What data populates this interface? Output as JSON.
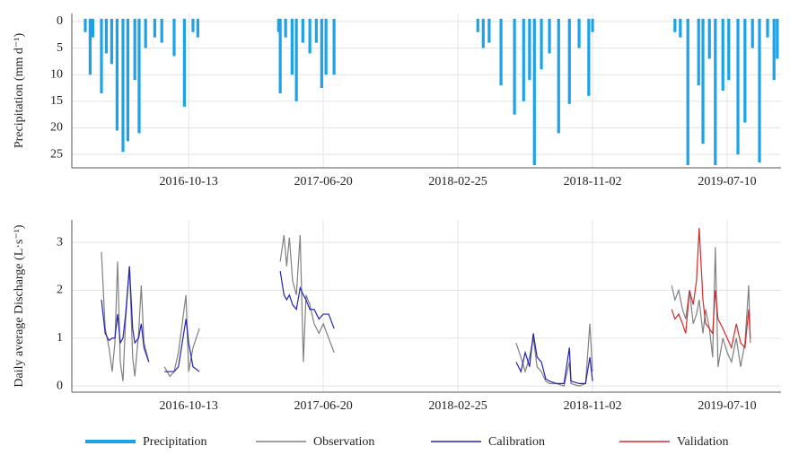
{
  "chart_data": [
    {
      "type": "bar",
      "ylabel": "Precipitation (mm d⁻¹)",
      "xlim": [
        "2016-03-10",
        "2019-10-18"
      ],
      "xticks": [
        "2016-10-13",
        "2017-06-20",
        "2018-02-25",
        "2018-11-02",
        "2019-07-10"
      ],
      "ylim": [
        -1.5,
        27.5
      ],
      "yticks": [
        0,
        5,
        10,
        15,
        20,
        25
      ],
      "y_inverted": true,
      "grid": true,
      "series": [
        {
          "name": "Precipitation",
          "color": "#1aa3e8",
          "x": [
            "2016-04-04",
            "2016-04-13",
            "2016-04-18",
            "2016-05-04",
            "2016-05-13",
            "2016-05-23",
            "2016-06-02",
            "2016-06-13",
            "2016-06-22",
            "2016-07-05",
            "2016-07-13",
            "2016-07-25",
            "2016-08-11",
            "2016-08-24",
            "2016-09-16",
            "2016-10-05",
            "2016-10-21",
            "2016-10-30",
            "2017-03-29",
            "2017-04-01",
            "2017-04-11",
            "2017-04-23",
            "2017-05-01",
            "2017-05-13",
            "2017-05-26",
            "2017-06-07",
            "2017-06-17",
            "2017-06-25",
            "2017-07-10",
            "2018-04-03",
            "2018-04-13",
            "2018-04-24",
            "2018-05-16",
            "2018-06-10",
            "2018-06-27",
            "2018-07-08",
            "2018-07-17",
            "2018-07-30",
            "2018-08-14",
            "2018-08-31",
            "2018-09-20",
            "2018-10-08",
            "2018-10-26",
            "2018-11-02",
            "2019-04-04",
            "2019-04-14",
            "2019-04-28",
            "2019-05-18",
            "2019-05-26",
            "2019-06-07",
            "2019-06-18",
            "2019-07-02",
            "2019-07-13",
            "2019-07-30",
            "2019-08-12",
            "2019-08-26",
            "2019-09-08",
            "2019-09-23",
            "2019-10-05",
            "2019-10-11"
          ],
          "values": [
            2,
            10,
            3,
            13.5,
            6,
            8,
            20.5,
            24.5,
            22.5,
            11,
            21,
            5,
            3,
            4,
            6.5,
            16,
            2,
            3,
            2,
            13.5,
            3,
            10,
            15,
            4,
            6,
            4,
            12.5,
            10,
            10,
            2,
            5,
            4,
            12,
            17.5,
            15,
            11,
            27,
            9,
            6,
            21,
            15.5,
            5,
            14,
            2,
            2,
            3,
            27,
            12,
            23,
            7,
            27,
            13,
            11,
            25,
            19,
            5,
            26.5,
            3,
            11,
            7
          ]
        }
      ]
    },
    {
      "type": "line",
      "ylabel": "Daily average Discharge (L·s⁻¹)",
      "xlim": [
        "2016-03-10",
        "2019-10-18"
      ],
      "xticks": [
        "2016-10-13",
        "2017-06-20",
        "2018-02-25",
        "2018-11-02",
        "2019-07-10"
      ],
      "ylim": [
        -0.13,
        3.47
      ],
      "yticks": [
        0,
        1,
        2,
        3
      ],
      "grid": true,
      "series": [
        {
          "name": "Observation",
          "color": "#808080",
          "x": [
            "2016-05-04",
            "2016-05-11",
            "2016-05-18",
            "2016-05-24",
            "2016-05-29",
            "2016-06-03",
            "2016-06-08",
            "2016-06-13",
            "2016-06-18",
            "2016-06-25",
            "2016-07-01",
            "2016-07-05",
            "2016-07-12",
            "2016-07-17",
            "2016-07-22",
            "2016-07-31",
            "2016-08-10",
            "2016-08-29",
            "2016-09-08",
            "2016-09-16",
            "2016-09-24",
            "2016-10-08",
            "2016-10-13",
            "2016-10-21",
            "2016-11-02",
            "2017-01-01",
            "2017-04-01",
            "2017-04-08",
            "2017-04-13",
            "2017-04-18",
            "2017-04-24",
            "2017-05-01",
            "2017-05-08",
            "2017-05-14",
            "2017-05-19",
            "2017-05-26",
            "2017-06-03",
            "2017-06-12",
            "2017-06-20",
            "2017-06-30",
            "2017-07-10",
            "2018-01-01",
            "2018-06-13",
            "2018-06-22",
            "2018-06-30",
            "2018-07-08",
            "2018-07-15",
            "2018-07-22",
            "2018-07-30",
            "2018-08-07",
            "2018-08-14",
            "2018-08-27",
            "2018-09-10",
            "2018-09-20",
            "2018-09-23",
            "2018-10-08",
            "2018-10-20",
            "2018-10-28",
            "2018-11-02",
            "2019-01-01",
            "2019-03-29",
            "2019-04-04",
            "2019-04-11",
            "2019-04-18",
            "2019-04-24",
            "2019-05-01",
            "2019-05-08",
            "2019-05-14",
            "2019-05-19",
            "2019-05-26",
            "2019-05-31",
            "2019-06-07",
            "2019-06-13",
            "2019-06-18",
            "2019-06-23",
            "2019-07-02",
            "2019-07-10",
            "2019-07-18",
            "2019-07-27",
            "2019-08-04",
            "2019-08-12",
            "2019-08-19",
            "2019-08-22"
          ],
          "values": [
            2.8,
            1.2,
            0.8,
            0.3,
            0.9,
            2.6,
            0.5,
            0.1,
            1.4,
            2.5,
            0.6,
            0.2,
            1.1,
            2.1,
            0.9,
            0.5,
            null,
            0.4,
            0.2,
            0.3,
            0.7,
            1.9,
            0.3,
            0.8,
            1.2,
            null,
            2.6,
            3.15,
            2.5,
            3.1,
            2.2,
            1.9,
            3.15,
            0.5,
            1.9,
            1.7,
            1.3,
            1.1,
            1.3,
            1.0,
            0.7,
            null,
            0.9,
            0.6,
            0.3,
            0.6,
            1.0,
            0.4,
            0.3,
            0.1,
            0.05,
            0.05,
            0,
            0.5,
            0.05,
            0,
            0.05,
            1.3,
            0.3,
            null,
            2.1,
            1.8,
            2.0,
            1.6,
            1.4,
            2.0,
            1.3,
            1.5,
            1.8,
            1.1,
            1.6,
            1.2,
            0.6,
            2.9,
            0.4,
            1.0,
            0.7,
            0.5,
            1.0,
            0.4,
            0.9,
            2.1,
            0.9
          ]
        },
        {
          "name": "Calibration",
          "color": "#2323b0",
          "x": [
            "2016-05-04",
            "2016-05-11",
            "2016-05-18",
            "2016-05-24",
            "2016-05-29",
            "2016-06-03",
            "2016-06-08",
            "2016-06-13",
            "2016-06-18",
            "2016-06-25",
            "2016-07-01",
            "2016-07-05",
            "2016-07-12",
            "2016-07-17",
            "2016-07-22",
            "2016-07-31",
            "2016-08-10",
            "2016-08-29",
            "2016-09-08",
            "2016-09-16",
            "2016-09-24",
            "2016-10-08",
            "2016-10-13",
            "2016-10-21",
            "2016-11-02",
            "2017-01-01",
            "2017-04-01",
            "2017-04-08",
            "2017-04-13",
            "2017-04-18",
            "2017-04-24",
            "2017-05-01",
            "2017-05-08",
            "2017-05-14",
            "2017-05-19",
            "2017-05-26",
            "2017-06-03",
            "2017-06-12",
            "2017-06-20",
            "2017-06-30",
            "2017-07-10",
            "2018-01-01",
            "2018-06-13",
            "2018-06-22",
            "2018-06-30",
            "2018-07-08",
            "2018-07-15",
            "2018-07-22",
            "2018-07-30",
            "2018-08-07",
            "2018-08-14",
            "2018-08-27",
            "2018-09-10",
            "2018-09-20",
            "2018-09-23",
            "2018-10-08",
            "2018-10-20",
            "2018-10-28",
            "2018-11-02"
          ],
          "values": [
            1.8,
            1.1,
            0.95,
            1.0,
            1.0,
            1.5,
            0.9,
            1.0,
            1.5,
            2.5,
            1.2,
            0.9,
            1.0,
            1.3,
            0.8,
            0.5,
            null,
            0.3,
            0.3,
            0.3,
            0.4,
            1.4,
            0.9,
            0.4,
            0.3,
            null,
            2.4,
            1.9,
            1.8,
            1.9,
            1.7,
            1.6,
            2.05,
            1.9,
            1.8,
            1.6,
            1.6,
            1.4,
            1.5,
            1.5,
            1.2,
            null,
            0.5,
            0.3,
            0.7,
            0.4,
            1.1,
            0.6,
            0.5,
            0.15,
            0.1,
            0.05,
            0.05,
            0.8,
            0.1,
            0.05,
            0.05,
            0.6,
            0.1
          ]
        },
        {
          "name": "Validation",
          "color": "#d42a2a",
          "x": [
            "2019-03-29",
            "2019-04-04",
            "2019-04-11",
            "2019-04-18",
            "2019-04-24",
            "2019-05-01",
            "2019-05-08",
            "2019-05-14",
            "2019-05-19",
            "2019-05-26",
            "2019-05-31",
            "2019-06-07",
            "2019-06-13",
            "2019-06-18",
            "2019-06-23",
            "2019-07-02",
            "2019-07-10",
            "2019-07-18",
            "2019-07-27",
            "2019-08-04",
            "2019-08-12",
            "2019-08-19",
            "2019-08-22"
          ],
          "values": [
            1.6,
            1.4,
            1.5,
            1.3,
            1.1,
            2.0,
            1.7,
            2.2,
            3.3,
            1.8,
            1.3,
            1.2,
            1.1,
            2.0,
            1.4,
            1.2,
            1.0,
            0.8,
            1.3,
            0.9,
            0.8,
            1.6,
            1.0
          ]
        }
      ]
    }
  ]
}
